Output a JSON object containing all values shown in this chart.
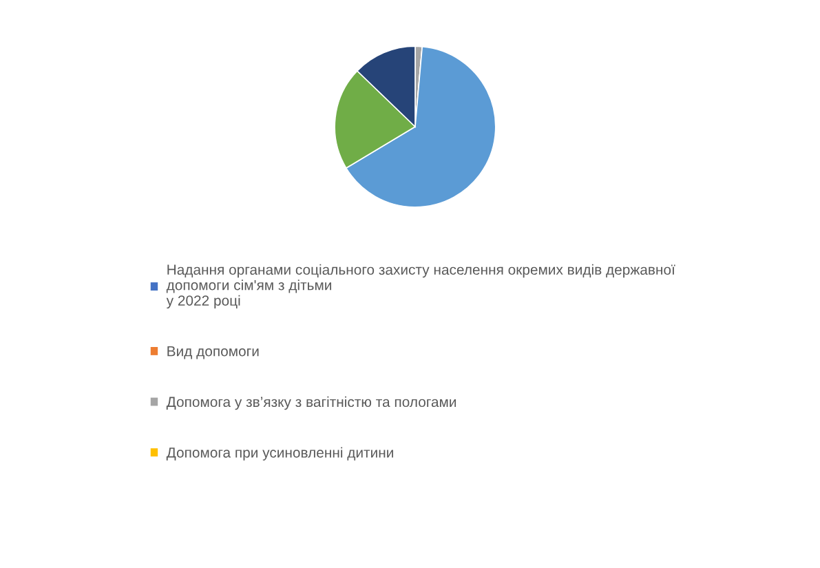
{
  "chart_data": {
    "type": "pie",
    "categories": [
      "Надання органами соціального захисту населення окремих видів державної\nдопомоги сім'ям з дітьми\nу 2022 році",
      "Вид допомоги",
      "Допомога у зв’язку з вагітністю та пологами",
      "Допомога при усиновленні дитини",
      null,
      null,
      null
    ],
    "values": [
      0,
      0,
      1.4,
      0,
      65.0,
      20.8,
      12.8
    ],
    "colors": [
      "#4472c4",
      "#ed7d31",
      "#a5a5a5",
      "#ffc000",
      "#5b9bd5",
      "#70ad47",
      "#264478"
    ],
    "legend": "bottom"
  }
}
